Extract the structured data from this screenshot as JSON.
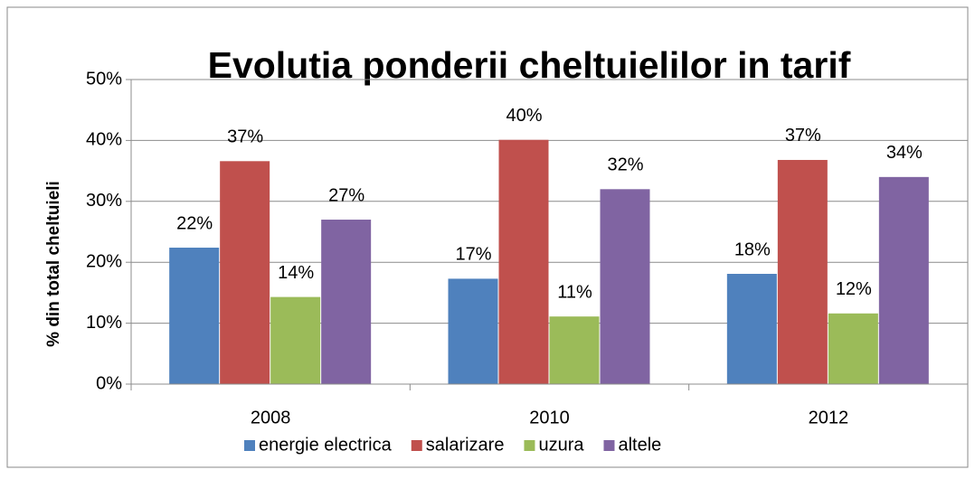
{
  "chart_data": {
    "type": "bar",
    "title": "Evolutia ponderii cheltuielilor in tarif",
    "y_label": "% din total cheltuieli",
    "categories": [
      "2008",
      "2010",
      "2012"
    ],
    "series": [
      {
        "name": "energie electrica",
        "color": "#4f81bd",
        "values": [
          22.4,
          17.3,
          18.1
        ],
        "value_labels": [
          "22%",
          "17%",
          "18%"
        ]
      },
      {
        "name": "salarizare",
        "color": "#c0504d",
        "values": [
          36.6,
          40.1,
          36.8
        ],
        "value_labels": [
          "37%",
          "40%",
          "37%"
        ]
      },
      {
        "name": "uzura",
        "color": "#9bbb59",
        "values": [
          14.3,
          11.1,
          11.6
        ],
        "value_labels": [
          "14%",
          "11%",
          "12%"
        ]
      },
      {
        "name": "altele",
        "color": "#8064a2",
        "values": [
          27,
          32,
          34
        ],
        "value_labels": [
          "27%",
          "32%",
          "34%"
        ]
      }
    ],
    "ylim": [
      0,
      50
    ],
    "yticks": [
      {
        "value": 0,
        "label": "0%"
      },
      {
        "value": 10,
        "label": "10%"
      },
      {
        "value": 20,
        "label": "20%"
      },
      {
        "value": 30,
        "label": "30%"
      },
      {
        "value": 40,
        "label": "40%"
      },
      {
        "value": 50,
        "label": "50%"
      }
    ],
    "grid": true,
    "legend": "bottom"
  }
}
